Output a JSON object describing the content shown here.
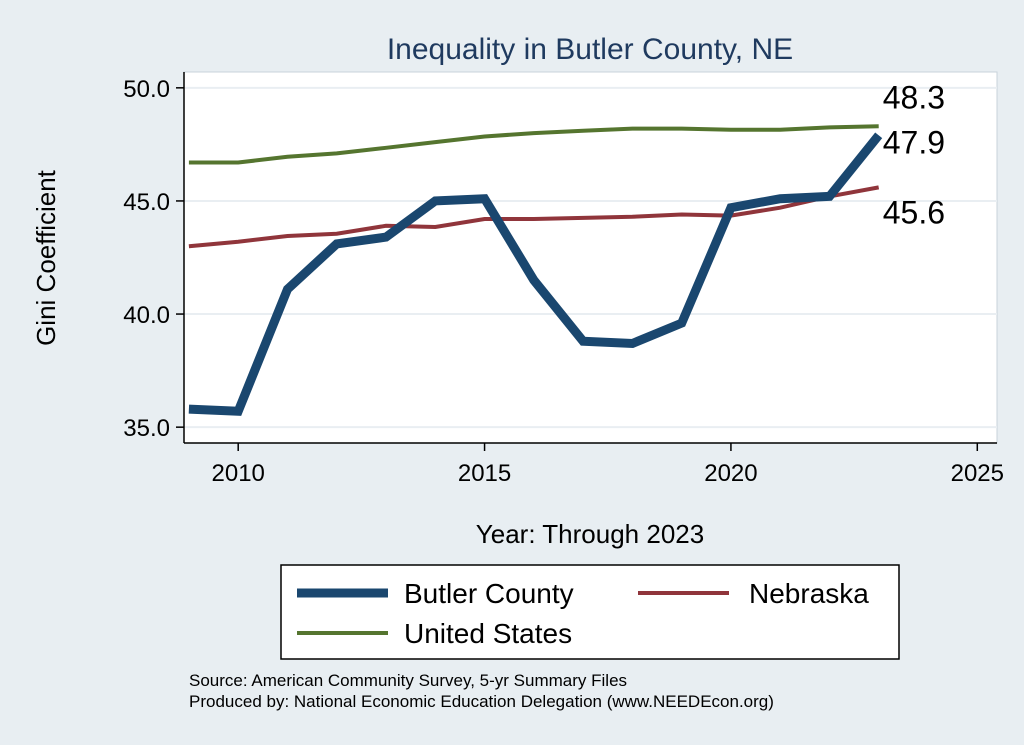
{
  "chart_data": {
    "type": "line",
    "title": "Inequality in Butler County, NE",
    "xlabel": "Year: Through 2023",
    "ylabel": "Gini Coefficient",
    "xlim": [
      2008.9,
      2025.4
    ],
    "ylim": [
      34.3,
      50.7
    ],
    "xticks": [
      2010,
      2015,
      2020,
      2025
    ],
    "yticks": [
      35.0,
      40.0,
      45.0,
      50.0
    ],
    "ytick_labels": [
      "35.0",
      "40.0",
      "45.0",
      "50.0"
    ],
    "grid": true,
    "x": [
      2009,
      2010,
      2011,
      2012,
      2013,
      2014,
      2015,
      2016,
      2017,
      2018,
      2019,
      2020,
      2021,
      2022,
      2023
    ],
    "series": [
      {
        "name": "Butler County",
        "color": "#1a476f",
        "values": [
          35.8,
          35.7,
          41.1,
          43.1,
          43.4,
          45.0,
          45.1,
          41.5,
          38.8,
          38.7,
          39.6,
          44.7,
          45.1,
          45.2,
          47.9
        ],
        "end_label": "47.9"
      },
      {
        "name": "Nebraska",
        "color": "#90353b",
        "values": [
          43.0,
          43.2,
          43.45,
          43.55,
          43.9,
          43.85,
          44.2,
          44.2,
          44.25,
          44.3,
          44.4,
          44.35,
          44.7,
          45.2,
          45.6
        ],
        "end_label": "45.6"
      },
      {
        "name": "United States",
        "color": "#55752f",
        "values": [
          46.7,
          46.7,
          46.95,
          47.1,
          47.35,
          47.6,
          47.85,
          48.0,
          48.1,
          48.2,
          48.2,
          48.15,
          48.15,
          48.25,
          48.3
        ],
        "end_label": "48.3"
      }
    ],
    "legend": {
      "position": "bottom",
      "entries": [
        "Butler County",
        "Nebraska",
        "United States"
      ]
    },
    "notes": [
      "Source: American Community Survey, 5-yr Summary Files",
      "Produced by: National Economic Education Delegation (www.NEEDEcon.org)"
    ]
  }
}
